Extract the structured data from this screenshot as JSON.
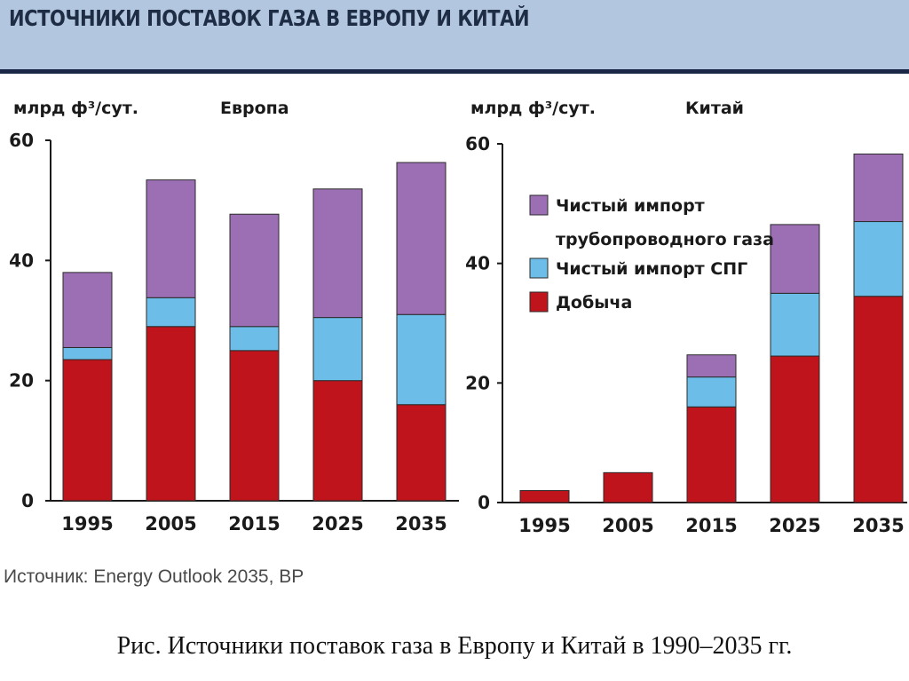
{
  "banner": {
    "title": "ИСТОЧНИКИ ПОСТАВОК ГАЗА В ЕВРОПУ И КИТАЙ"
  },
  "legend": [
    {
      "key": "pipeline",
      "lines": [
        "Чистый импорт",
        "трубопроводного газа"
      ],
      "color": "#9c6fb4"
    },
    {
      "key": "lng",
      "lines": [
        "Чистый импорт СПГ"
      ],
      "color": "#6cbde8"
    },
    {
      "key": "production",
      "lines": [
        "Добыча"
      ],
      "color": "#c0141c"
    }
  ],
  "chart_data": [
    {
      "type": "bar",
      "stacked": true,
      "title": "Европа",
      "ylabel": "млрд ф³/сут.",
      "xlabel": "",
      "ylim": [
        0,
        60
      ],
      "yticks": [
        0,
        20,
        40,
        60
      ],
      "categories": [
        "1995",
        "2005",
        "2015",
        "2025",
        "2035"
      ],
      "series": [
        {
          "name": "Добыча",
          "key": "production",
          "values": [
            23.5,
            29,
            25,
            20,
            16
          ]
        },
        {
          "name": "Чистый импорт СПГ",
          "key": "lng",
          "values": [
            2,
            4.8,
            4,
            10.5,
            15
          ]
        },
        {
          "name": "Чистый импорт трубопроводного газа",
          "key": "pipeline",
          "values": [
            12.5,
            19.6,
            18.7,
            21.4,
            25.3
          ]
        }
      ]
    },
    {
      "type": "bar",
      "stacked": true,
      "title": "Китай",
      "ylabel": "млрд ф³/сут.",
      "xlabel": "",
      "ylim": [
        0,
        60
      ],
      "yticks": [
        0,
        20,
        40,
        60
      ],
      "categories": [
        "1995",
        "2005",
        "2015",
        "2025",
        "2035"
      ],
      "series": [
        {
          "name": "Добыча",
          "key": "production",
          "values": [
            2,
            5,
            16,
            24.5,
            34.5
          ]
        },
        {
          "name": "Чистый импорт СПГ",
          "key": "lng",
          "values": [
            0,
            0,
            5,
            10.5,
            12.5
          ]
        },
        {
          "name": "Чистый импорт трубопроводного газа",
          "key": "pipeline",
          "values": [
            0,
            0,
            3.7,
            11.5,
            11.3
          ]
        }
      ]
    }
  ],
  "source": "Источник: Energy Outlook 2035, BP",
  "caption": "Рис. Источники поставок газа в Европу и Китай в 1990–2035 гг."
}
